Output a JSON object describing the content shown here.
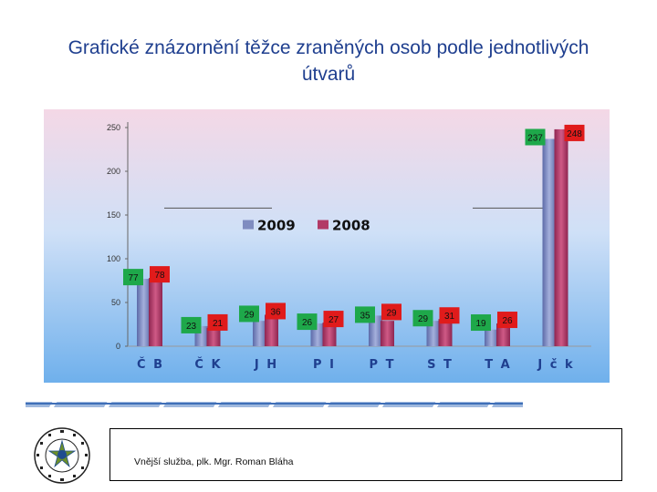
{
  "slide": {
    "title": "Grafické znázornění těžce zraněných osob podle jednotlivých útvarů"
  },
  "footer": {
    "text": "Vnější služba, plk. Mgr. Roman Bláha"
  },
  "colors": {
    "series_2009": "#7f8cc0",
    "series_2008": "#b23a66",
    "label_2009_bg": "#1ea84a",
    "label_2008_bg": "#e01b1b",
    "title": "#1f3f8f"
  },
  "chart_data": {
    "type": "bar",
    "categories": [
      "Č B",
      "Č K",
      "J H",
      "P I",
      "P T",
      "S T",
      "T A",
      "J č k"
    ],
    "series": [
      {
        "name": "2009",
        "values": [
          77,
          23,
          29,
          26,
          35,
          29,
          19,
          237
        ]
      },
      {
        "name": "2008",
        "values": [
          78,
          21,
          36,
          27,
          29,
          31,
          26,
          248
        ]
      }
    ],
    "ylim": [
      0,
      250
    ],
    "yticks": [
      "0",
      "50",
      "100",
      "150",
      "200",
      "250"
    ],
    "legend_position": "center",
    "grid": false
  }
}
